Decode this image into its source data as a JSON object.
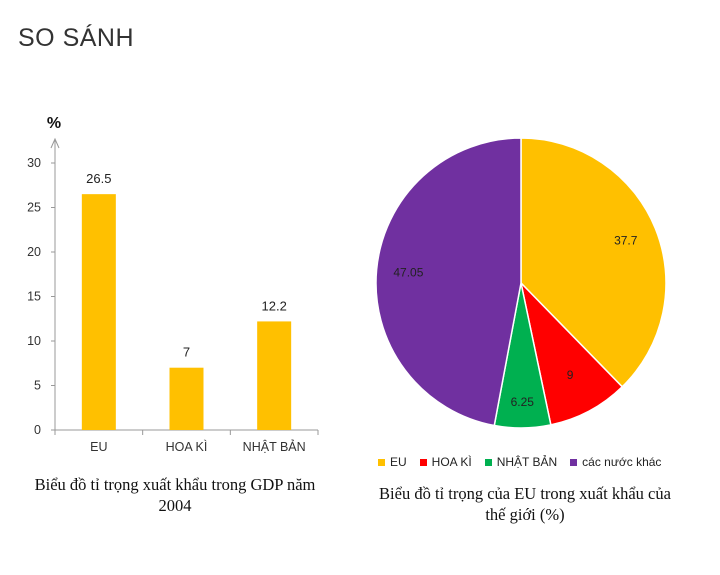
{
  "page": {
    "title": "SO SÁNH"
  },
  "chart_data": [
    {
      "type": "bar",
      "categories": [
        "EU",
        "HOA KÌ",
        "NHẬT BẢN"
      ],
      "values": [
        26.5,
        7,
        12.2
      ],
      "value_labels": [
        "26.5",
        "7",
        "12.2"
      ],
      "ylabel": "%",
      "ylim": [
        0,
        30
      ],
      "yticks": [
        "0",
        "5",
        "10",
        "15",
        "20",
        "25",
        "30"
      ],
      "color": "#FFC000",
      "caption": "Biểu đồ tỉ trọng xuất khẩu trong GDP năm 2004"
    },
    {
      "type": "pie",
      "labels": [
        "EU",
        "HOA KÌ",
        "NHẬT BẢN",
        "các nước khác"
      ],
      "values": [
        37.7,
        9,
        6.25,
        47.05
      ],
      "value_labels": [
        "37.7",
        "9",
        "6.25",
        "47.05"
      ],
      "colors": [
        "#FFC000",
        "#FF0000",
        "#00B050",
        "#7030A0"
      ],
      "legend_position": "bottom",
      "caption": "Biểu đồ tỉ trọng của EU trong xuất khẩu của thế giới (%)"
    }
  ]
}
